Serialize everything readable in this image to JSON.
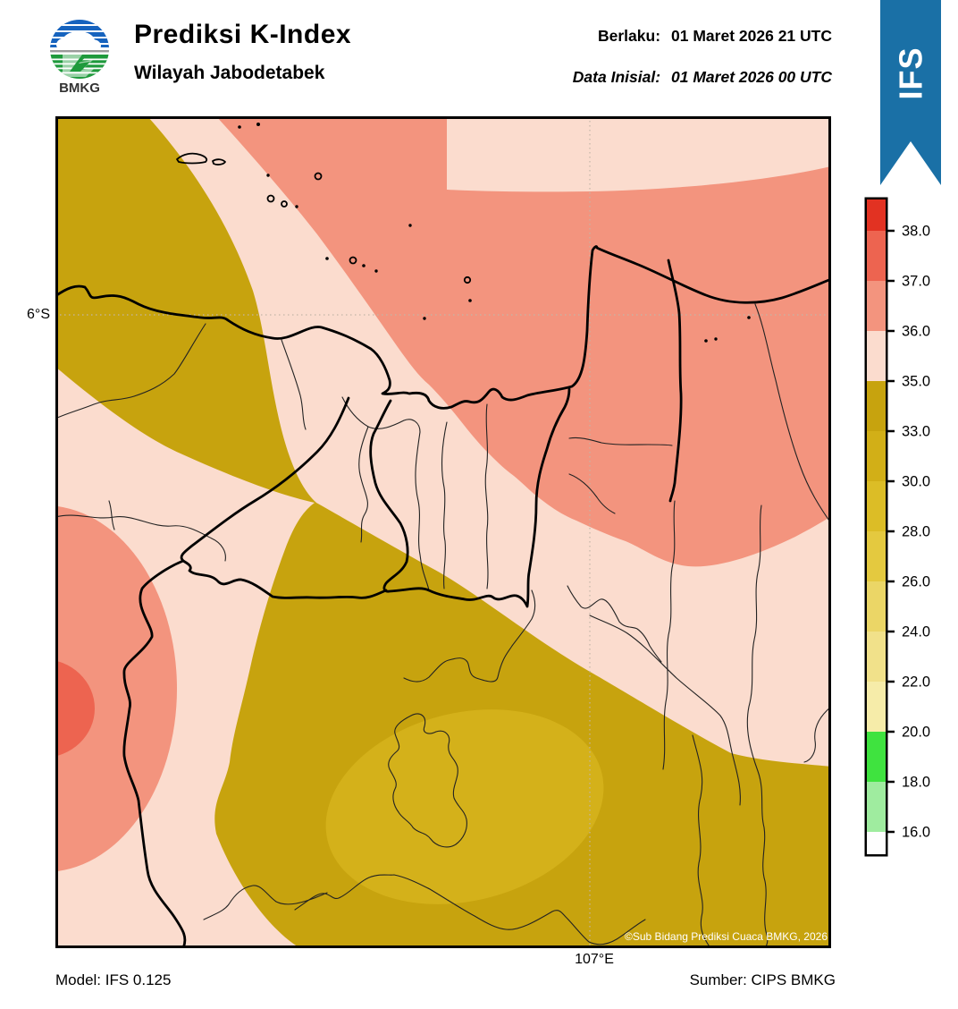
{
  "header": {
    "logo_text": "BMKG",
    "title": "Prediksi K-Index",
    "subtitle": "Wilayah Jabodetabek",
    "valid_label": "Berlaku:",
    "valid_value": "01 Maret 2026 21 UTC",
    "init_label": "Data Inisial:",
    "init_value": "01 Maret 2026 00 UTC",
    "ribbon": "IFS"
  },
  "map": {
    "lat_label": "6°S",
    "lon_label": "107°E",
    "copyright": "©Sub Bidang Prediksi Cuaca BMKG, 2026"
  },
  "colorbar": {
    "tick_labels": [
      "38.0",
      "37.0",
      "36.0",
      "35.0",
      "33.0",
      "30.0",
      "28.0",
      "26.0",
      "24.0",
      "22.0",
      "20.0",
      "18.0",
      "16.0"
    ],
    "segment_colors": [
      "#E23222",
      "#ED6450",
      "#F3947E",
      "#FBDCCE",
      "#C7A30E",
      "#D2AF17",
      "#DCBD26",
      "#E4C93F",
      "#EBD666",
      "#F1E18A",
      "#F6ECA9",
      "#3FE33F",
      "#9FEC9F",
      "#FEFEFE"
    ]
  },
  "footer": {
    "model": "Model: IFS 0.125",
    "source": "Sumber: CIPS BMKG"
  },
  "colors": {
    "pale": "#FBDCCE",
    "salmon": "#F3947E",
    "salmon_dark": "#ED6450",
    "olive": "#C7A30E",
    "gold": "#D4B11A",
    "ribbon_blue": "#1A70A6",
    "logo_blue": "#1663BE",
    "logo_green": "#1F9A3C"
  },
  "chart_data": {
    "type": "heatmap",
    "title": "Prediksi K-Index",
    "region": "Wilayah Jabodetabek",
    "valid_time": "01 Maret 2026 21 UTC",
    "initial_time": "01 Maret 2026 00 UTC",
    "model": "IFS 0.125",
    "source": "CIPS BMKG",
    "colorbar_ticks": [
      38.0,
      37.0,
      36.0,
      35.0,
      33.0,
      30.0,
      28.0,
      26.0,
      24.0,
      22.0,
      20.0,
      18.0,
      16.0
    ],
    "gridlines": {
      "latitude": "6°S",
      "longitude": "107°E"
    },
    "regions_estimated": [
      {
        "area": "north and northeast (Java Sea / Karawang)",
        "k_index": "36-37"
      },
      {
        "area": "thin band along top edge (far north)",
        "k_index": "35-36"
      },
      {
        "area": "northwest wedge and large south-central mass",
        "k_index": "33-35"
      },
      {
        "area": "central band through Jakarta / southwest channel",
        "k_index": "35-36"
      },
      {
        "area": "west edge blob",
        "k_index": "36-37"
      },
      {
        "area": "west edge inner core",
        "k_index": "37-38"
      },
      {
        "area": "ellipse around Bogor (south-center)",
        "k_index": "30-33"
      }
    ]
  }
}
